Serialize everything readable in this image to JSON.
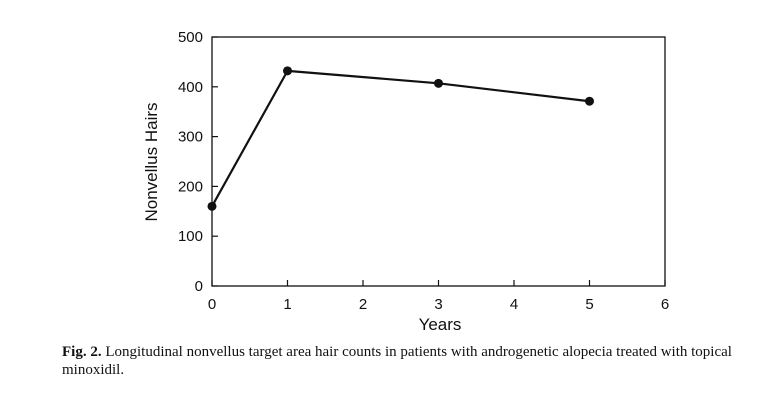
{
  "chart_data": {
    "type": "line",
    "x": [
      0,
      1,
      3,
      5
    ],
    "series": [
      {
        "values": [
          160,
          432,
          407,
          371
        ]
      }
    ],
    "xlabel": "Years",
    "ylabel": "Nonvellus Hairs",
    "xlim": [
      0,
      6
    ],
    "ylim": [
      0,
      500
    ],
    "xticks": [
      "0",
      "1",
      "2",
      "3",
      "4",
      "5",
      "6"
    ],
    "yticks": [
      "0",
      "100",
      "200",
      "300",
      "400",
      "500"
    ],
    "grid": false,
    "legend": "none"
  },
  "caption": {
    "label": "Fig. 2.",
    "text": "Longitudinal nonvellus target area hair counts in patients with androgenetic alopecia treated with topical minoxidil."
  }
}
